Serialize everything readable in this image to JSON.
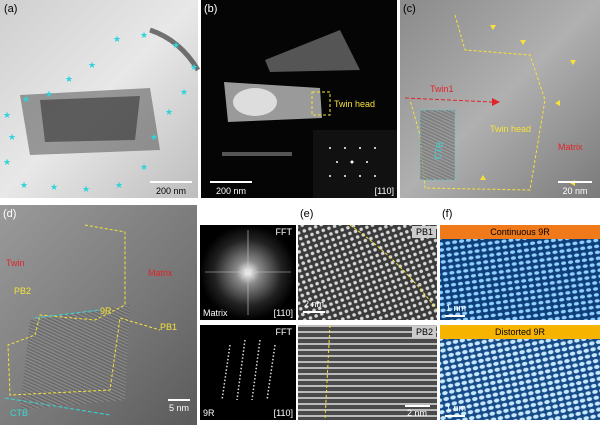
{
  "panels": [
    {
      "label": "(a)",
      "scale_bar": "200 nm"
    },
    {
      "label": "(b)",
      "annotation": "Twin head",
      "scale_bar": "200 nm",
      "zone_axis": "[110]"
    },
    {
      "label": "(c)",
      "annotations": [
        "Twin1",
        "Twin head",
        "Matrix",
        "CTB"
      ],
      "scale_bar": "20 nm"
    },
    {
      "label": "(d)",
      "annotations": [
        "Twin",
        "Matrix",
        "PB2",
        "9R",
        "PB1",
        "CTB"
      ],
      "scale_bar": "5 nm"
    },
    {
      "label": "(e)",
      "insets": [
        {
          "tag": "PB1",
          "scale_bar": "2 nm"
        },
        {
          "tag": "PB2",
          "scale_bar": "2 nm"
        }
      ]
    },
    {
      "label": "(f)",
      "insets": [
        {
          "title": "Continuous 9R",
          "scale_bar": "1 nm"
        },
        {
          "title": "Distorted 9R",
          "scale_bar": "1 nm"
        }
      ]
    }
  ],
  "fft_insets": [
    {
      "tag": "FFT",
      "phase": "Matrix",
      "zone_axis": "[110]"
    },
    {
      "tag": "FFT",
      "phase": "9R",
      "zone_axis": "[110]"
    }
  ]
}
